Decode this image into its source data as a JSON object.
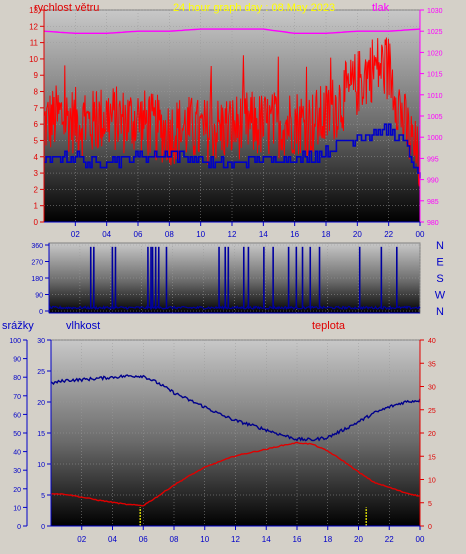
{
  "header": {
    "title": "24 hour graph day : 08.May 2023",
    "left_label": "rychlost větru",
    "right_label": "tlak"
  },
  "middle": {
    "compass": [
      "N",
      "W",
      "S",
      "E",
      "N"
    ]
  },
  "bottom": {
    "label_rain": "srážky",
    "label_humidity": "vlhkost",
    "label_temp": "teplota"
  },
  "colors": {
    "wind": "#ff0000",
    "gust_avg": "#0000c8",
    "pressure": "#ff00ff",
    "direction": "#0000a0",
    "humidity": "#00008c",
    "temperature": "#e00000",
    "rain": "#ffff00",
    "axis_blue": "#0000c8",
    "axis_red": "#e00000",
    "axis_magenta": "#ff00ff"
  },
  "chart_data": [
    {
      "type": "line",
      "title": "24 hour graph day : 08.May 2023",
      "x_ticks": [
        "02",
        "04",
        "06",
        "08",
        "10",
        "12",
        "14",
        "16",
        "18",
        "20",
        "22",
        "00"
      ],
      "xlim_hours": [
        0,
        24
      ],
      "y_left": {
        "label": "rychlost větru",
        "ticks": [
          0,
          1,
          2,
          3,
          4,
          5,
          6,
          7,
          8,
          9,
          10,
          11,
          12,
          13
        ],
        "lim": [
          0,
          13
        ]
      },
      "y_right": {
        "label": "tlak",
        "ticks": [
          980,
          985,
          990,
          995,
          1000,
          1005,
          1010,
          1015,
          1020,
          1025,
          1030
        ],
        "lim": [
          980,
          1030
        ]
      },
      "series": [
        {
          "name": "rychlost větru",
          "axis": "left",
          "hours": [
            0,
            1,
            2,
            3,
            4,
            5,
            6,
            7,
            8,
            9,
            10,
            11,
            12,
            13,
            14,
            15,
            16,
            17,
            18,
            19,
            20,
            21,
            22,
            23,
            24
          ],
          "values": [
            6.0,
            6.5,
            6.2,
            6.0,
            6.5,
            6.2,
            6.3,
            5.8,
            5.5,
            5.8,
            5.5,
            5.7,
            5.8,
            6.0,
            5.9,
            6.0,
            6.2,
            6.0,
            6.5,
            7.5,
            8.5,
            9.5,
            9.5,
            6.0,
            3.5
          ]
        },
        {
          "name": "",
          "axis": "left",
          "hours": [
            0,
            1,
            2,
            3,
            4,
            5,
            6,
            7,
            8,
            9,
            10,
            11,
            12,
            13,
            14,
            15,
            16,
            17,
            18,
            19,
            20,
            21,
            22,
            23,
            24
          ],
          "values": [
            3.5,
            4.0,
            4.0,
            3.5,
            3.8,
            3.8,
            4.0,
            4.1,
            4.2,
            4.0,
            3.8,
            3.6,
            3.5,
            3.8,
            3.8,
            3.9,
            3.9,
            4.0,
            4.3,
            4.8,
            5.3,
            5.4,
            5.7,
            4.8,
            2.5
          ]
        },
        {
          "name": "tlak",
          "axis": "right",
          "hours": [
            0,
            2,
            4,
            6,
            8,
            10,
            12,
            14,
            16,
            18,
            20,
            22,
            24
          ],
          "values": [
            1025,
            1024.5,
            1024.5,
            1025,
            1025,
            1025.5,
            1025.5,
            1025.5,
            1024.5,
            1024.5,
            1025,
            1025,
            1025.5
          ]
        }
      ]
    },
    {
      "type": "line",
      "x_ticks": [
        "02",
        "04",
        "06",
        "08",
        "10",
        "12",
        "14",
        "16",
        "18",
        "20",
        "22",
        "00"
      ],
      "y_left": {
        "ticks": [
          0,
          90,
          180,
          270,
          360
        ],
        "lim": [
          0,
          360
        ]
      },
      "series": [
        {
          "name": "",
          "base_degrees": 15,
          "spike_hours": [
            2.7,
            2.9,
            4.1,
            4.3,
            6.4,
            6.6,
            6.7,
            6.9,
            7.1,
            7.6,
            11.0,
            11.4,
            11.6,
            12.6,
            12.9,
            13.9,
            14.5,
            15.5,
            16.0,
            16.4,
            16.9,
            17.5,
            20.1,
            21.5,
            22.5
          ],
          "spike_degrees": 350
        }
      ]
    },
    {
      "type": "line",
      "x_ticks": [
        "02",
        "04",
        "06",
        "08",
        "10",
        "12",
        "14",
        "16",
        "18",
        "20",
        "22",
        "00"
      ],
      "y_rain": {
        "label": "srážky",
        "ticks": [
          0,
          10,
          20,
          30,
          40,
          50,
          60,
          70,
          80,
          90,
          100
        ],
        "lim": [
          0,
          100
        ]
      },
      "y_humidity": {
        "label": "vlhkost",
        "ticks": [
          0,
          5,
          10,
          15,
          20,
          25,
          30
        ],
        "lim": [
          0,
          30
        ]
      },
      "y_temp": {
        "label": "teplota",
        "ticks": [
          0,
          5,
          10,
          15,
          20,
          25,
          30,
          35,
          40
        ],
        "lim": [
          0,
          40
        ]
      },
      "series": [
        {
          "name": "vlhkost",
          "axis": "humidity",
          "hours": [
            0,
            1,
            2,
            3,
            4,
            5,
            6,
            7,
            8,
            9,
            10,
            11,
            12,
            13,
            14,
            15,
            16,
            17,
            18,
            19,
            20,
            21,
            22,
            23,
            24
          ],
          "values": [
            23.0,
            23.5,
            23.6,
            23.8,
            24.0,
            24.2,
            24.2,
            23.0,
            21.5,
            20.3,
            19.2,
            18.0,
            17.0,
            16.3,
            15.5,
            14.7,
            14.0,
            13.9,
            14.3,
            15.5,
            16.8,
            18.2,
            19.2,
            20.0,
            20.3
          ]
        },
        {
          "name": "teplota",
          "axis": "temp",
          "hours": [
            0,
            1,
            2,
            3,
            4,
            5,
            6,
            7,
            8,
            9,
            10,
            11,
            12,
            13,
            14,
            15,
            16,
            17,
            18,
            19,
            20,
            21,
            22,
            23,
            24
          ],
          "values": [
            7.0,
            6.8,
            6.2,
            5.6,
            5.1,
            4.6,
            4.4,
            6.5,
            8.8,
            10.8,
            12.6,
            13.9,
            15.1,
            15.8,
            16.5,
            17.3,
            17.9,
            17.6,
            16.1,
            14.0,
            11.6,
            9.4,
            8.3,
            7.2,
            6.4
          ]
        },
        {
          "name": "srážky",
          "axis": "rain",
          "hours": [
            5.8,
            20.5
          ],
          "values": [
            10,
            10
          ]
        }
      ]
    }
  ]
}
